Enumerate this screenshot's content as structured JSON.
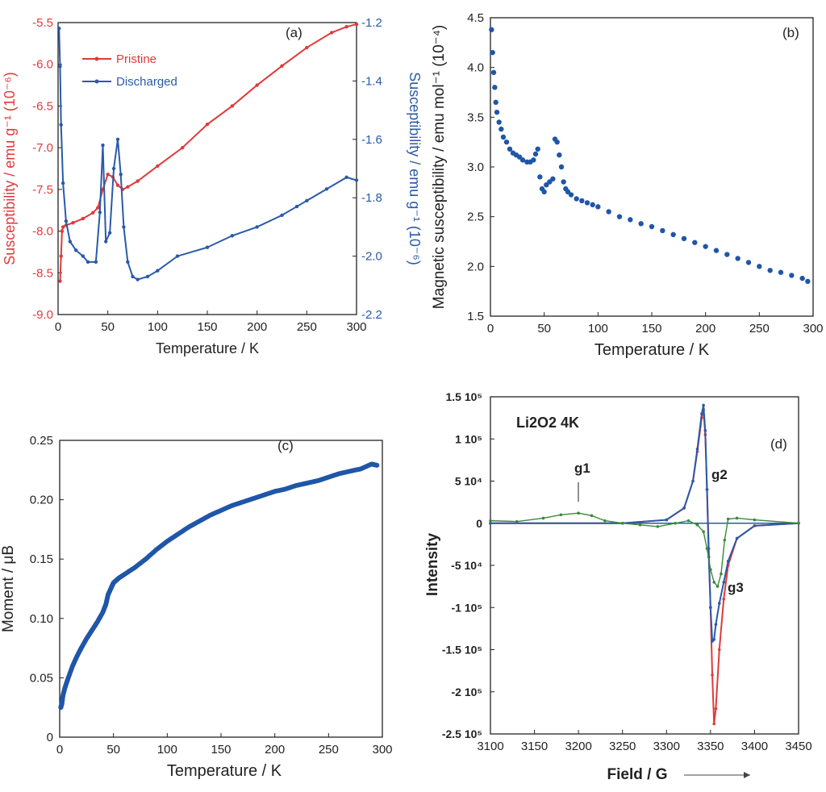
{
  "chart_data": [
    {
      "panel": "(a)",
      "type": "line",
      "xlabel": "Temperature / K",
      "ylabel_left": "Susceptibility / emu g⁻¹ (10⁻⁶)",
      "ylabel_right": "Susceptibility / emu g⁻¹ (10⁻⁶)",
      "xlim": [
        0,
        300
      ],
      "xticks": [
        "0",
        "50",
        "100",
        "150",
        "200",
        "250",
        "300"
      ],
      "ylim_left": [
        -9.0,
        -5.5
      ],
      "yticks_left": [
        "-9.0",
        "-8.5",
        "-8.0",
        "-7.5",
        "-7.0",
        "-6.5",
        "-6.0",
        "-5.5"
      ],
      "ylim_right": [
        -2.2,
        -1.2
      ],
      "yticks_right": [
        "-2.2",
        "-2.0",
        "-1.8",
        "-1.6",
        "-1.4",
        "-1.2"
      ],
      "legend_position": "top-left",
      "colors": {
        "left_axis": "#e03a3a",
        "right_axis": "#2a5aa8"
      },
      "series": [
        {
          "name": "Pristine",
          "axis": "left",
          "color": "#e03a3a",
          "x": [
            2,
            3,
            4,
            5,
            8,
            15,
            25,
            35,
            40,
            45,
            50,
            55,
            60,
            65,
            70,
            80,
            100,
            125,
            150,
            175,
            200,
            225,
            250,
            275,
            290,
            300
          ],
          "y": [
            -8.6,
            -8.3,
            -8.0,
            -7.95,
            -7.93,
            -7.9,
            -7.85,
            -7.78,
            -7.72,
            -7.5,
            -7.32,
            -7.35,
            -7.45,
            -7.5,
            -7.47,
            -7.4,
            -7.22,
            -7.0,
            -6.72,
            -6.5,
            -6.25,
            -6.02,
            -5.8,
            -5.62,
            -5.55,
            -5.52
          ]
        },
        {
          "name": "Discharged",
          "axis": "right",
          "color": "#2a5aa8",
          "x": [
            1,
            2,
            3,
            5,
            8,
            12,
            18,
            25,
            30,
            38,
            42,
            45,
            48,
            52,
            56,
            60,
            63,
            66,
            70,
            75,
            80,
            90,
            100,
            120,
            150,
            175,
            200,
            225,
            240,
            250,
            270,
            290,
            300
          ],
          "y": [
            -1.22,
            -1.35,
            -1.55,
            -1.75,
            -1.88,
            -1.95,
            -1.98,
            -2.0,
            -2.02,
            -2.02,
            -1.85,
            -1.62,
            -1.95,
            -1.92,
            -1.7,
            -1.6,
            -1.72,
            -1.9,
            -2.02,
            -2.07,
            -2.08,
            -2.07,
            -2.05,
            -2.0,
            -1.97,
            -1.93,
            -1.9,
            -1.86,
            -1.83,
            -1.81,
            -1.77,
            -1.73,
            -1.74
          ]
        }
      ]
    },
    {
      "panel": "(b)",
      "type": "scatter",
      "xlabel": "Temperature / K",
      "ylabel": "Magnetic susceptibility / emu mol⁻¹ (10⁻⁴)",
      "xlim": [
        0,
        300
      ],
      "xticks": [
        "0",
        "50",
        "100",
        "150",
        "200",
        "250",
        "300"
      ],
      "ylim": [
        1.5,
        4.5
      ],
      "yticks": [
        "1.5",
        "2.0",
        "2.5",
        "3.0",
        "3.5",
        "4.0",
        "4.5"
      ],
      "series": [
        {
          "color": "#1f56a8",
          "x": [
            1,
            2,
            3,
            4,
            5,
            6,
            8,
            10,
            12,
            15,
            18,
            21,
            24,
            27,
            30,
            34,
            37,
            40,
            42,
            44,
            46,
            48,
            50,
            52,
            55,
            58,
            60,
            62,
            64,
            66,
            68,
            70,
            72,
            75,
            80,
            85,
            90,
            95,
            100,
            110,
            120,
            130,
            140,
            150,
            160,
            170,
            180,
            190,
            200,
            210,
            220,
            230,
            240,
            250,
            260,
            270,
            280,
            290,
            295
          ],
          "y": [
            4.38,
            4.15,
            3.95,
            3.8,
            3.65,
            3.55,
            3.45,
            3.38,
            3.3,
            3.25,
            3.18,
            3.14,
            3.12,
            3.1,
            3.07,
            3.05,
            3.05,
            3.07,
            3.13,
            3.18,
            2.9,
            2.78,
            2.75,
            2.82,
            2.85,
            2.88,
            3.28,
            3.25,
            3.12,
            3.0,
            2.85,
            2.78,
            2.75,
            2.72,
            2.68,
            2.66,
            2.64,
            2.62,
            2.6,
            2.55,
            2.5,
            2.47,
            2.43,
            2.4,
            2.36,
            2.32,
            2.28,
            2.24,
            2.2,
            2.16,
            2.12,
            2.08,
            2.04,
            2.0,
            1.96,
            1.94,
            1.91,
            1.88,
            1.85
          ]
        }
      ]
    },
    {
      "panel": "(c)",
      "type": "scatter",
      "xlabel": "Temperature / K",
      "ylabel": "Moment / μB",
      "xlim": [
        0,
        300
      ],
      "xticks": [
        "0",
        "50",
        "100",
        "150",
        "200",
        "250",
        "300"
      ],
      "ylim": [
        0,
        0.25
      ],
      "yticks": [
        "0",
        "0.05",
        "0.10",
        "0.15",
        "0.20",
        "0.25"
      ],
      "series": [
        {
          "color": "#1f56a8",
          "x": [
            1,
            2,
            3,
            5,
            8,
            12,
            16,
            20,
            25,
            30,
            35,
            40,
            43,
            45,
            48,
            50,
            55,
            60,
            70,
            80,
            90,
            100,
            110,
            120,
            130,
            140,
            150,
            160,
            170,
            180,
            190,
            200,
            210,
            220,
            230,
            240,
            250,
            260,
            270,
            280,
            290,
            295
          ],
          "y": [
            0.025,
            0.028,
            0.035,
            0.042,
            0.05,
            0.06,
            0.068,
            0.075,
            0.083,
            0.09,
            0.097,
            0.105,
            0.112,
            0.12,
            0.126,
            0.13,
            0.134,
            0.137,
            0.143,
            0.15,
            0.158,
            0.165,
            0.171,
            0.177,
            0.182,
            0.187,
            0.191,
            0.195,
            0.198,
            0.201,
            0.204,
            0.207,
            0.209,
            0.212,
            0.214,
            0.216,
            0.219,
            0.222,
            0.224,
            0.226,
            0.23,
            0.229
          ]
        }
      ]
    },
    {
      "panel": "(d)",
      "type": "line",
      "title": "Li2O2 4K",
      "xlabel": "Field / G",
      "ylabel": "Intensity",
      "xlim": [
        3100,
        3450
      ],
      "xticks": [
        "3100",
        "3150",
        "3200",
        "3250",
        "3300",
        "3350",
        "3400",
        "3450"
      ],
      "ylim": [
        -250000,
        150000
      ],
      "yticks": [
        "1.5 10⁵",
        "1 10⁵",
        "5 10⁴",
        "0",
        "-5 10⁴",
        "-1 10⁵",
        "-1.5 10⁵",
        "-2 10⁵",
        "-2.5 10⁵"
      ],
      "annotations": [
        "g1",
        "g2",
        "g3"
      ],
      "series": [
        {
          "color": "#e03a3a",
          "x": [
            3100,
            3250,
            3300,
            3320,
            3330,
            3335,
            3340,
            3342,
            3344,
            3346,
            3348,
            3350,
            3352,
            3354,
            3356,
            3360,
            3365,
            3370,
            3380,
            3400,
            3450
          ],
          "y": [
            0,
            0,
            4000,
            18000,
            50000,
            85000,
            125000,
            135000,
            105000,
            40000,
            -30000,
            -100000,
            -180000,
            -238000,
            -220000,
            -150000,
            -90000,
            -50000,
            -18000,
            -3000,
            0
          ]
        },
        {
          "color": "#2a5aa8",
          "x": [
            3100,
            3250,
            3300,
            3320,
            3330,
            3335,
            3340,
            3342,
            3344,
            3346,
            3348,
            3350,
            3352,
            3354,
            3356,
            3360,
            3365,
            3370,
            3380,
            3400,
            3450
          ],
          "y": [
            0,
            0,
            4000,
            18000,
            50000,
            88000,
            130000,
            140000,
            110000,
            40000,
            -40000,
            -100000,
            -140000,
            -138000,
            -120000,
            -95000,
            -70000,
            -45000,
            -18000,
            -3000,
            0
          ]
        },
        {
          "color": "#3a8a3a",
          "x": [
            3100,
            3130,
            3160,
            3180,
            3200,
            3215,
            3230,
            3250,
            3270,
            3290,
            3310,
            3325,
            3335,
            3342,
            3346,
            3350,
            3354,
            3358,
            3362,
            3366,
            3370,
            3380,
            3400,
            3450
          ],
          "y": [
            3000,
            2000,
            6000,
            10000,
            12000,
            9000,
            3000,
            0,
            -2000,
            -4000,
            0,
            3000,
            -2000,
            -10000,
            -30000,
            -55000,
            -70000,
            -75000,
            -60000,
            -20000,
            5000,
            6000,
            4000,
            0
          ]
        }
      ]
    }
  ]
}
